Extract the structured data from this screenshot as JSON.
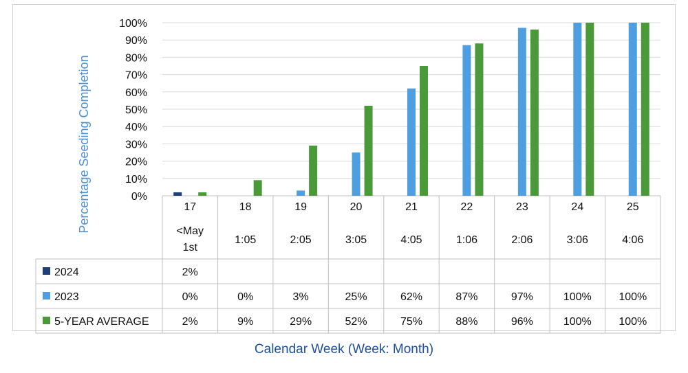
{
  "chart_data": {
    "type": "bar",
    "ylabel": "Percentage Seeding Completion",
    "xlabel": "Calendar Week (Week: Month)",
    "ylim": [
      0,
      100
    ],
    "yticks": [
      "0%",
      "10%",
      "20%",
      "30%",
      "40%",
      "50%",
      "60%",
      "70%",
      "80%",
      "90%",
      "100%"
    ],
    "categories": [
      {
        "week": "17",
        "month": [
          "<May",
          "1st"
        ]
      },
      {
        "week": "18",
        "month": [
          "1:05"
        ]
      },
      {
        "week": "19",
        "month": [
          "2:05"
        ]
      },
      {
        "week": "20",
        "month": [
          "3:05"
        ]
      },
      {
        "week": "21",
        "month": [
          "4:05"
        ]
      },
      {
        "week": "22",
        "month": [
          "1:06"
        ]
      },
      {
        "week": "23",
        "month": [
          "2:06"
        ]
      },
      {
        "week": "24",
        "month": [
          "3:06"
        ]
      },
      {
        "week": "25",
        "month": [
          "4:06"
        ]
      }
    ],
    "series": [
      {
        "name": "2024",
        "color": "#1f3f77",
        "values": [
          2,
          null,
          null,
          null,
          null,
          null,
          null,
          null,
          null
        ],
        "labels": [
          "2%",
          "",
          "",
          "",
          "",
          "",
          "",
          "",
          ""
        ]
      },
      {
        "name": "2023",
        "color": "#4f9ee0",
        "values": [
          0,
          0,
          3,
          25,
          62,
          87,
          97,
          100,
          100
        ],
        "labels": [
          "0%",
          "0%",
          "3%",
          "25%",
          "62%",
          "87%",
          "97%",
          "100%",
          "100%"
        ]
      },
      {
        "name": "5-YEAR AVERAGE",
        "color": "#4a9a3a",
        "values": [
          2,
          9,
          29,
          52,
          75,
          88,
          96,
          100,
          100
        ],
        "labels": [
          "2%",
          "9%",
          "29%",
          "52%",
          "75%",
          "88%",
          "96%",
          "100%",
          "100%"
        ]
      }
    ],
    "grid": true,
    "legend": "data-table"
  }
}
